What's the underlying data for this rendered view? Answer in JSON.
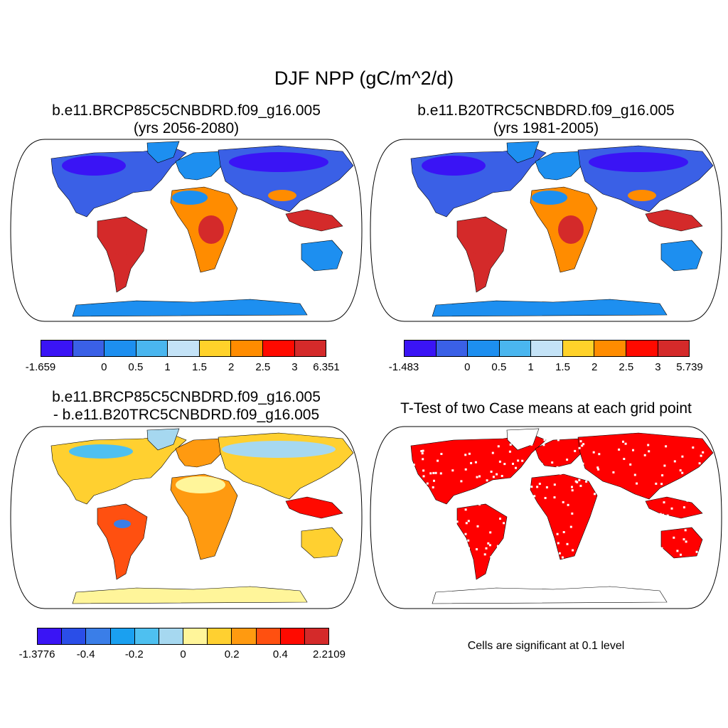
{
  "figure": {
    "title": "DJF NPP (gC/m^2/d)"
  },
  "panels": [
    {
      "id": "case",
      "title_line1": "b.e11.BRCP85C5CNBDRD.f09_g16.005",
      "title_line2": "(yrs 2056-2080)",
      "palette": [
        "#3a14f5",
        "#3a60e6",
        "#1d8ff0",
        "#4ab6ef",
        "#c4e3f7",
        "#ffd22a",
        "#ff8c00",
        "#ff0a00",
        "#d42a2a"
      ],
      "ticks": [
        "-1.659",
        "0",
        "0.5",
        "1",
        "1.5",
        "2",
        "2.5",
        "3",
        "6.351"
      ]
    },
    {
      "id": "control",
      "title_line1": "b.e11.B20TRC5CNBDRD.f09_g16.005",
      "title_line2": "(yrs 1981-2005)",
      "palette": [
        "#3a14f5",
        "#3a60e6",
        "#1d8ff0",
        "#4ab6ef",
        "#c4e3f7",
        "#ffd22a",
        "#ff8c00",
        "#ff0a00",
        "#d42a2a"
      ],
      "ticks": [
        "-1.483",
        "0",
        "0.5",
        "1",
        "1.5",
        "2",
        "2.5",
        "3",
        "5.739"
      ]
    },
    {
      "id": "difference",
      "title_line1": "b.e11.BRCP85C5CNBDRD.f09_g16.005",
      "title_line2": "- b.e11.B20TRC5CNBDRD.f09_g16.005",
      "palette": [
        "#3a14f5",
        "#2a4ee8",
        "#3a7ee8",
        "#1aa0f0",
        "#4ec0f0",
        "#a6d8f0",
        "#fff59a",
        "#ffd030",
        "#ff9a10",
        "#ff5010",
        "#ff0a00",
        "#d42a2a"
      ],
      "ticks": [
        "-1.3776",
        "-0.4",
        "-0.2",
        "0",
        "0.2",
        "0.4",
        "2.2109"
      ]
    },
    {
      "id": "ttest",
      "title_line1": "T-Test of two Case means at each grid point",
      "note": "Cells are significant at 0.1 level",
      "significant_color": "#ff0000"
    }
  ]
}
